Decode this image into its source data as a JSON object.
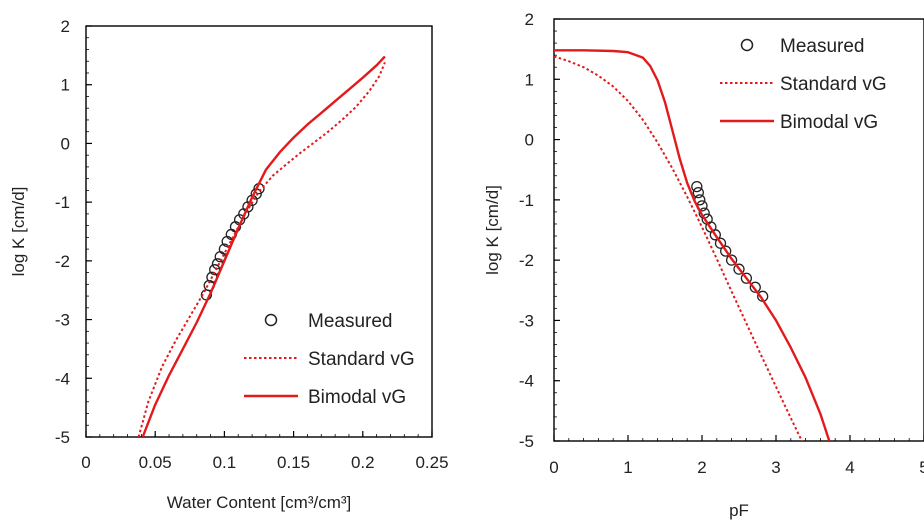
{
  "chart_data": [
    {
      "type": "line",
      "xlabel": "Water Content [cm³/cm³]",
      "ylabel": "log K [cm/d]",
      "xlim": [
        0,
        0.25
      ],
      "ylim": [
        -5,
        2
      ],
      "xticks": [
        0,
        0.05,
        0.1,
        0.15,
        0.2,
        0.25
      ],
      "xtick_labels": [
        "0",
        "0.05",
        "0.1",
        "0.15",
        "0.2",
        "0.25"
      ],
      "yticks": [
        -5,
        -4,
        -3,
        -2,
        -1,
        0,
        1,
        2
      ],
      "ytick_labels": [
        "-5",
        "-4",
        "-3",
        "-2",
        "-1",
        "0",
        "1",
        "2"
      ],
      "legend_position": "bottom-right",
      "colors": {
        "curve": "#e31a1c",
        "marker": "#222222"
      },
      "series": [
        {
          "name": "Measured",
          "style": "circles",
          "x": [
            0.087,
            0.089,
            0.091,
            0.093,
            0.095,
            0.097,
            0.1,
            0.102,
            0.105,
            0.108,
            0.111,
            0.114,
            0.117,
            0.12,
            0.123,
            0.125
          ],
          "y": [
            -2.58,
            -2.42,
            -2.28,
            -2.15,
            -2.05,
            -1.93,
            -1.8,
            -1.67,
            -1.55,
            -1.42,
            -1.3,
            -1.2,
            -1.08,
            -0.97,
            -0.86,
            -0.77
          ]
        },
        {
          "name": "Standard vG",
          "style": "dotted",
          "x": [
            0.038,
            0.045,
            0.055,
            0.065,
            0.075,
            0.085,
            0.095,
            0.105,
            0.115,
            0.125,
            0.135,
            0.145,
            0.155,
            0.165,
            0.175,
            0.185,
            0.195,
            0.205,
            0.212,
            0.216
          ],
          "y": [
            -5.0,
            -4.4,
            -3.8,
            -3.35,
            -2.95,
            -2.55,
            -2.1,
            -1.65,
            -1.2,
            -0.82,
            -0.55,
            -0.35,
            -0.16,
            0.02,
            0.2,
            0.4,
            0.62,
            0.9,
            1.15,
            1.38
          ]
        },
        {
          "name": "Bimodal vG",
          "style": "solid",
          "x": [
            0.041,
            0.05,
            0.06,
            0.07,
            0.08,
            0.09,
            0.1,
            0.11,
            0.12,
            0.13,
            0.14,
            0.15,
            0.16,
            0.17,
            0.18,
            0.19,
            0.2,
            0.21,
            0.216
          ],
          "y": [
            -5.0,
            -4.45,
            -3.95,
            -3.5,
            -3.05,
            -2.55,
            -2.0,
            -1.45,
            -0.92,
            -0.45,
            -0.15,
            0.1,
            0.32,
            0.52,
            0.72,
            0.92,
            1.12,
            1.33,
            1.48
          ]
        }
      ]
    },
    {
      "type": "line",
      "xlabel": "pF",
      "ylabel": "log K [cm/d]",
      "xlim": [
        0,
        5
      ],
      "ylim": [
        -5,
        2
      ],
      "xticks": [
        0,
        1,
        2,
        3,
        4,
        5
      ],
      "xtick_labels": [
        "0",
        "1",
        "2",
        "3",
        "4",
        "5"
      ],
      "yticks": [
        -5,
        -4,
        -3,
        -2,
        -1,
        0,
        1,
        2
      ],
      "ytick_labels": [
        "-5",
        "-4",
        "-3",
        "-2",
        "-1",
        "0",
        "1",
        "2"
      ],
      "legend_position": "top-right",
      "colors": {
        "curve": "#e31a1c",
        "marker": "#222222"
      },
      "series": [
        {
          "name": "Measured",
          "style": "circles",
          "x": [
            1.93,
            1.95,
            1.97,
            2.0,
            2.03,
            2.07,
            2.12,
            2.18,
            2.25,
            2.32,
            2.4,
            2.5,
            2.6,
            2.72,
            2.82
          ],
          "y": [
            -0.78,
            -0.88,
            -1.0,
            -1.1,
            -1.22,
            -1.32,
            -1.45,
            -1.58,
            -1.72,
            -1.85,
            -2.0,
            -2.15,
            -2.3,
            -2.45,
            -2.6
          ]
        },
        {
          "name": "Standard vG",
          "style": "dotted",
          "x": [
            0,
            0.2,
            0.4,
            0.6,
            0.8,
            1.0,
            1.2,
            1.4,
            1.6,
            1.8,
            2.0,
            2.2,
            2.4,
            2.6,
            2.8,
            3.0,
            3.2,
            3.35
          ],
          "y": [
            1.38,
            1.3,
            1.2,
            1.06,
            0.88,
            0.64,
            0.33,
            -0.05,
            -0.48,
            -0.95,
            -1.45,
            -1.98,
            -2.52,
            -3.05,
            -3.58,
            -4.1,
            -4.62,
            -5.0
          ]
        },
        {
          "name": "Bimodal vG",
          "style": "solid",
          "x": [
            0,
            0.4,
            0.8,
            1.0,
            1.2,
            1.3,
            1.4,
            1.5,
            1.6,
            1.7,
            1.8,
            1.9,
            2.0,
            2.2,
            2.4,
            2.6,
            2.8,
            3.0,
            3.2,
            3.4,
            3.6,
            3.72
          ],
          "y": [
            1.48,
            1.48,
            1.47,
            1.45,
            1.36,
            1.22,
            0.98,
            0.62,
            0.15,
            -0.32,
            -0.72,
            -1.02,
            -1.25,
            -1.62,
            -1.98,
            -2.3,
            -2.62,
            -3.0,
            -3.45,
            -3.95,
            -4.55,
            -5.0
          ]
        }
      ]
    }
  ]
}
